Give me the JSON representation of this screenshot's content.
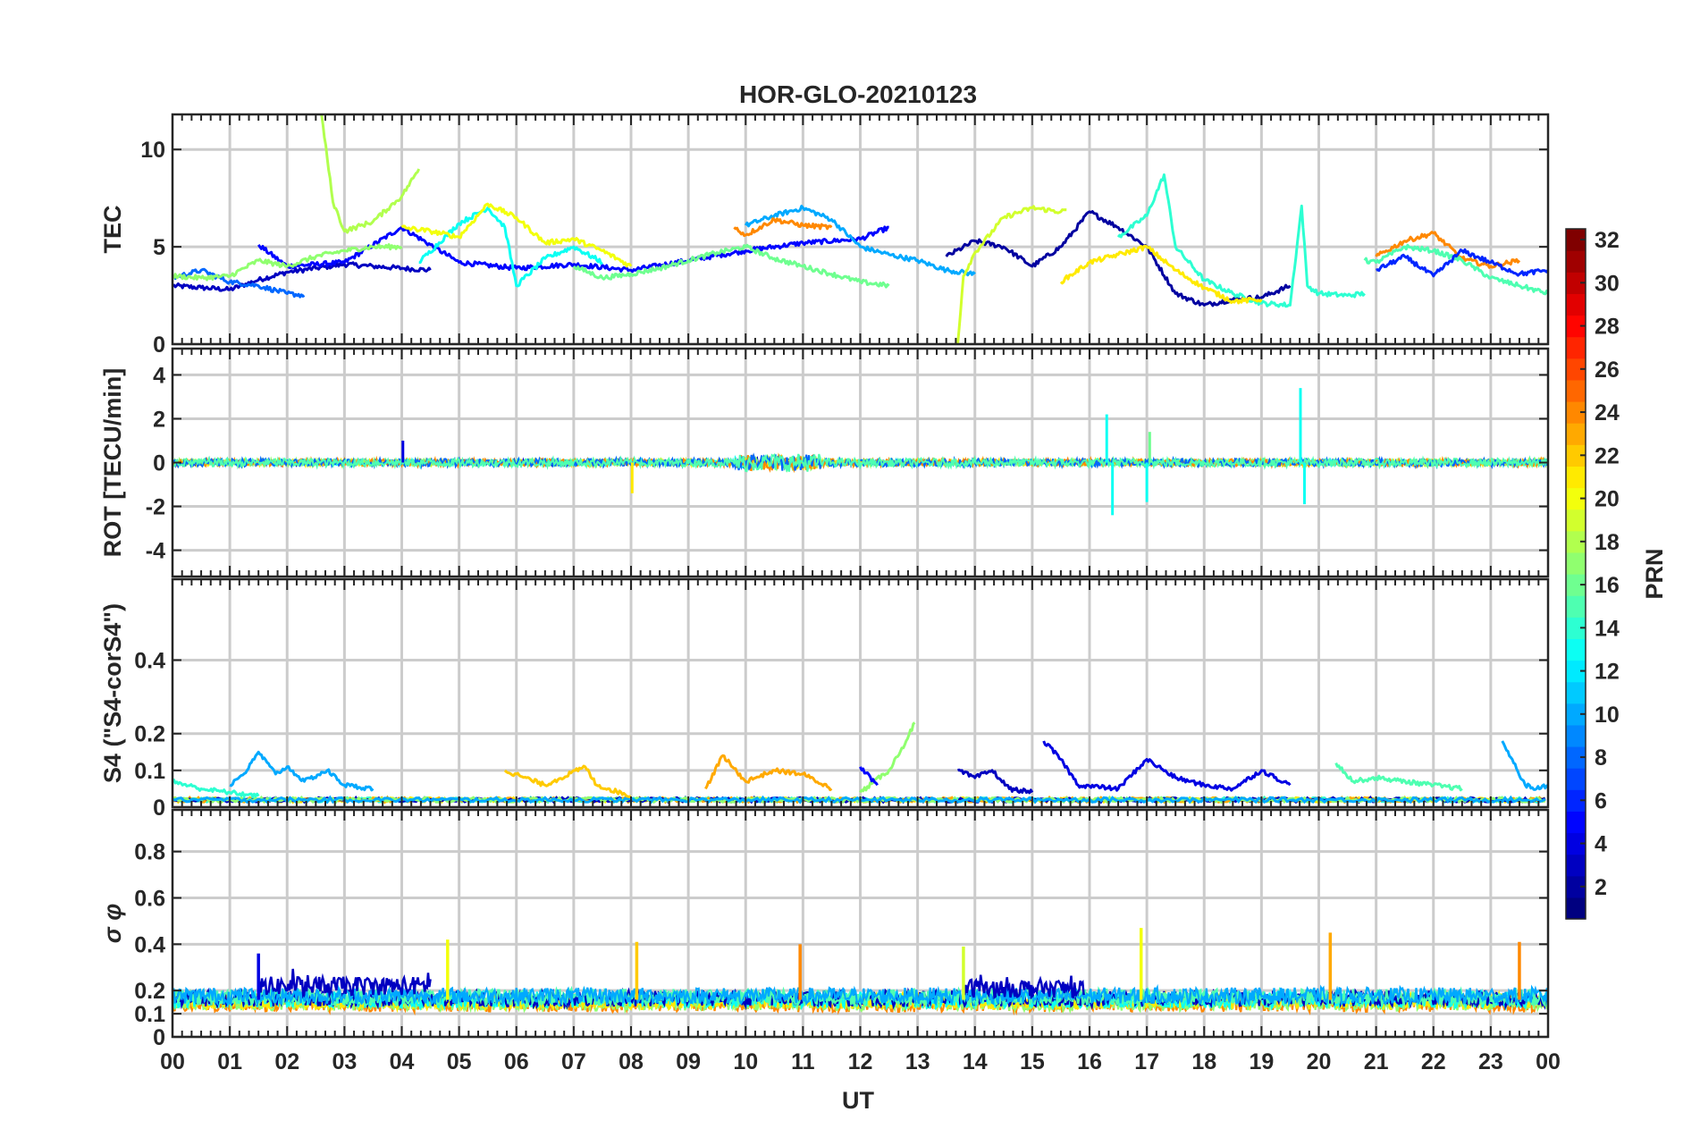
{
  "chart_data": {
    "type": "line",
    "title": "HOR-GLO-20210123",
    "xlabel": "UT",
    "x_tick_labels": [
      "00",
      "01",
      "02",
      "03",
      "04",
      "05",
      "06",
      "07",
      "08",
      "09",
      "10",
      "11",
      "12",
      "13",
      "14",
      "15",
      "16",
      "17",
      "18",
      "19",
      "20",
      "21",
      "22",
      "23",
      "00"
    ],
    "xlim": [
      0,
      24
    ],
    "colorbar": {
      "label": "PRN",
      "range": [
        1,
        32
      ],
      "ticks": [
        2,
        4,
        6,
        8,
        10,
        12,
        14,
        16,
        18,
        20,
        22,
        24,
        26,
        28,
        30,
        32
      ],
      "colormap": "jet"
    },
    "panels": [
      {
        "id": "tec",
        "ylabel": "TEC",
        "ylim": [
          0,
          11.8
        ],
        "yticks": [
          0,
          5,
          10
        ],
        "series": [
          {
            "prn": 3,
            "x": [
              0,
              0.5,
              1,
              1.5,
              2,
              2.5,
              3,
              3.5,
              4,
              4.5
            ],
            "y": [
              3.0,
              2.9,
              2.8,
              3.3,
              3.7,
              3.9,
              4.1,
              4.0,
              3.9,
              3.8
            ]
          },
          {
            "prn": 5,
            "x": [
              1.5,
              2,
              3,
              4,
              5,
              6,
              7,
              8,
              9,
              10,
              11,
              12,
              12.5
            ],
            "y": [
              5.1,
              4.0,
              4.2,
              6.0,
              4.2,
              3.9,
              4.1,
              3.8,
              4.3,
              4.8,
              5.2,
              5.4,
              6.0
            ]
          },
          {
            "prn": 2,
            "x": [
              13.5,
              14,
              14.5,
              15,
              15.5,
              16,
              16.5,
              17,
              17.5,
              18,
              18.5,
              19,
              19.5
            ],
            "y": [
              4.5,
              5.3,
              5.0,
              4.0,
              5.0,
              6.8,
              6.0,
              5.0,
              2.6,
              2.0,
              2.3,
              2.4,
              3.0
            ]
          },
          {
            "prn": 8,
            "x": [
              0,
              0.5,
              1,
              1.5,
              2,
              2.3
            ],
            "y": [
              3.4,
              3.8,
              3.2,
              3.0,
              2.6,
              2.5
            ]
          },
          {
            "prn": 10,
            "x": [
              10,
              10.5,
              11,
              11.5,
              12,
              12.5,
              13,
              13.5,
              14
            ],
            "y": [
              6.1,
              6.6,
              7.0,
              6.4,
              5.0,
              4.6,
              4.3,
              3.8,
              3.6
            ]
          },
          {
            "prn": 14,
            "x": [
              16.5,
              17,
              17.3,
              17.5,
              18,
              18.5,
              19,
              19.5,
              19.7,
              19.8,
              20,
              20.5,
              20.8
            ],
            "y": [
              5.5,
              6.6,
              8.7,
              5.0,
              3.3,
              2.6,
              2.1,
              2.0,
              7.1,
              3.0,
              2.6,
              2.5,
              2.6
            ]
          },
          {
            "prn": 13,
            "x": [
              4.3,
              5,
              5.5,
              5.8,
              6,
              6.5,
              7,
              7.5
            ],
            "y": [
              4.2,
              6.2,
              7.0,
              6.0,
              3.0,
              4.4,
              5.0,
              4.2
            ]
          },
          {
            "prn": 17,
            "x": [
              0,
              0.5,
              1,
              1.5,
              2,
              2.5,
              3,
              3.5,
              4
            ],
            "y": [
              3.5,
              3.4,
              3.5,
              4.3,
              4.0,
              4.5,
              4.8,
              5.0,
              5.0
            ]
          },
          {
            "prn": 16,
            "x": [
              7,
              7.5,
              8,
              8.5,
              9,
              9.5,
              10,
              10.5,
              11,
              11.5,
              12,
              12.5
            ],
            "y": [
              4.0,
              3.4,
              3.6,
              3.9,
              4.3,
              4.7,
              5.0,
              4.4,
              4.0,
              3.6,
              3.2,
              3.0
            ]
          },
          {
            "prn": 18,
            "x": [
              2.6,
              2.8,
              3,
              3.5,
              4,
              4.3
            ],
            "y": [
              11.8,
              7.3,
              5.8,
              6.3,
              7.6,
              9.0
            ]
          },
          {
            "prn": 19,
            "x": [
              13.7,
              13.8,
              14,
              14.5,
              15,
              15.5,
              15.6
            ],
            "y": [
              0.0,
              3.5,
              4.7,
              6.5,
              7.0,
              6.8,
              6.9
            ]
          },
          {
            "prn": 20,
            "x": [
              4,
              4.5,
              5,
              5.5,
              6,
              6.5,
              7,
              7.5,
              8
            ],
            "y": [
              6.0,
              5.8,
              5.5,
              7.2,
              6.5,
              5.2,
              5.4,
              4.8,
              4.0
            ]
          },
          {
            "prn": 24,
            "x": [
              9.8,
              10,
              10.5,
              11,
              11.5
            ],
            "y": [
              6.0,
              5.6,
              6.4,
              6.1,
              6.0
            ]
          },
          {
            "prn": 24,
            "x": [
              21,
              21.5,
              22,
              22.5,
              23,
              23.5
            ],
            "y": [
              4.5,
              5.3,
              5.7,
              4.4,
              4.0,
              4.3
            ]
          },
          {
            "prn": 21,
            "x": [
              15.5,
              16,
              16.5,
              17,
              17.5,
              18,
              18.5,
              19
            ],
            "y": [
              3.2,
              4.2,
              4.6,
              5.0,
              3.8,
              2.9,
              2.2,
              2.3
            ]
          },
          {
            "prn": 15,
            "x": [
              20.8,
              21,
              21.5,
              22,
              22.5,
              23,
              23.5,
              24
            ],
            "y": [
              4.3,
              4.2,
              5.0,
              4.8,
              4.3,
              3.4,
              3.0,
              2.6
            ]
          },
          {
            "prn": 6,
            "x": [
              21,
              21.5,
              22,
              22.5,
              23,
              23.5,
              24
            ],
            "y": [
              3.8,
              4.5,
              3.5,
              4.8,
              4.2,
              3.6,
              3.8
            ]
          }
        ]
      },
      {
        "id": "rot",
        "ylabel": "ROT [TECU/min]",
        "ylim": [
          -5.2,
          5.2
        ],
        "yticks": [
          -4,
          -2,
          0,
          2,
          4
        ],
        "spikes": [
          {
            "prn": 13,
            "x": 19.68,
            "y": 3.4
          },
          {
            "prn": 13,
            "x": 19.75,
            "y": -1.9
          },
          {
            "prn": 13,
            "x": 16.4,
            "y": -2.4
          },
          {
            "prn": 13,
            "x": 16.3,
            "y": 2.2
          },
          {
            "prn": 16,
            "x": 17.05,
            "y": 1.4
          },
          {
            "prn": 13,
            "x": 17.0,
            "y": -1.8
          },
          {
            "prn": 21,
            "x": 8.02,
            "y": -1.4
          },
          {
            "prn": 4,
            "x": 4.02,
            "y": 1.0
          }
        ],
        "noise_amplitude": 0.35
      },
      {
        "id": "s4",
        "ylabel": "S4 (\"S4-corS4\")",
        "ylim": [
          0,
          0.62
        ],
        "yticks": [
          0,
          0.1,
          0.2,
          0.4
        ],
        "series": [
          {
            "prn": 10,
            "x": [
              1,
              1.3,
              1.5,
              1.8,
              2,
              2.3,
              2.7,
              3,
              3.5
            ],
            "y": [
              0.06,
              0.1,
              0.15,
              0.09,
              0.11,
              0.07,
              0.1,
              0.06,
              0.05
            ]
          },
          {
            "prn": 17,
            "x": [
              12,
              12.5,
              12.8,
              12.95
            ],
            "y": [
              0.04,
              0.1,
              0.18,
              0.23
            ]
          },
          {
            "prn": 3,
            "x": [
              13.7,
              14,
              14.3,
              14.6,
              15
            ],
            "y": [
              0.1,
              0.08,
              0.1,
              0.05,
              0.04
            ]
          },
          {
            "prn": 4,
            "x": [
              15.2,
              15.5,
              15.8,
              16.5,
              17,
              17.5,
              18,
              18.5,
              19,
              19.5
            ],
            "y": [
              0.18,
              0.13,
              0.06,
              0.05,
              0.13,
              0.08,
              0.06,
              0.05,
              0.1,
              0.06
            ]
          },
          {
            "prn": 23,
            "x": [
              9.3,
              9.6,
              10,
              10.5,
              11,
              11.5
            ],
            "y": [
              0.05,
              0.14,
              0.07,
              0.1,
              0.09,
              0.05
            ]
          },
          {
            "prn": 22,
            "x": [
              5.8,
              6.5,
              7.2,
              7.4,
              8
            ],
            "y": [
              0.1,
              0.06,
              0.11,
              0.06,
              0.03
            ]
          },
          {
            "prn": 15,
            "x": [
              20.3,
              20.6,
              21,
              22,
              22.5
            ],
            "y": [
              0.12,
              0.07,
              0.08,
              0.06,
              0.05
            ]
          },
          {
            "prn": 10,
            "x": [
              23.2,
              23.4,
              23.6,
              23.8,
              24
            ],
            "y": [
              0.18,
              0.12,
              0.06,
              0.05,
              0.06
            ]
          },
          {
            "prn": 5,
            "x": [
              12,
              12.3
            ],
            "y": [
              0.11,
              0.06
            ]
          },
          {
            "prn": 14,
            "x": [
              0,
              0.5,
              1,
              1.5
            ],
            "y": [
              0.07,
              0.05,
              0.04,
              0.03
            ]
          }
        ],
        "baseline": 0.02
      },
      {
        "id": "sigma",
        "ylabel": "σ φ",
        "ylim": [
          0,
          0.98
        ],
        "yticks": [
          0,
          0.1,
          0.2,
          0.4,
          0.6,
          0.8
        ],
        "spikes": [
          {
            "prn": 20,
            "x": 4.8,
            "y": 0.42
          },
          {
            "prn": 22,
            "x": 8.1,
            "y": 0.41
          },
          {
            "prn": 24,
            "x": 10.95,
            "y": 0.4
          },
          {
            "prn": 19,
            "x": 13.8,
            "y": 0.39
          },
          {
            "prn": 20,
            "x": 16.9,
            "y": 0.47
          },
          {
            "prn": 23,
            "x": 20.2,
            "y": 0.45
          },
          {
            "prn": 24,
            "x": 23.5,
            "y": 0.41
          },
          {
            "prn": 4,
            "x": 1.5,
            "y": 0.36
          }
        ],
        "bands": [
          {
            "prn": 3,
            "x0": 1.5,
            "x1": 4.5,
            "level": 0.22
          },
          {
            "prn": 3,
            "x0": 13.8,
            "x1": 15.9,
            "level": 0.21
          }
        ],
        "baseline": 0.16
      }
    ]
  }
}
